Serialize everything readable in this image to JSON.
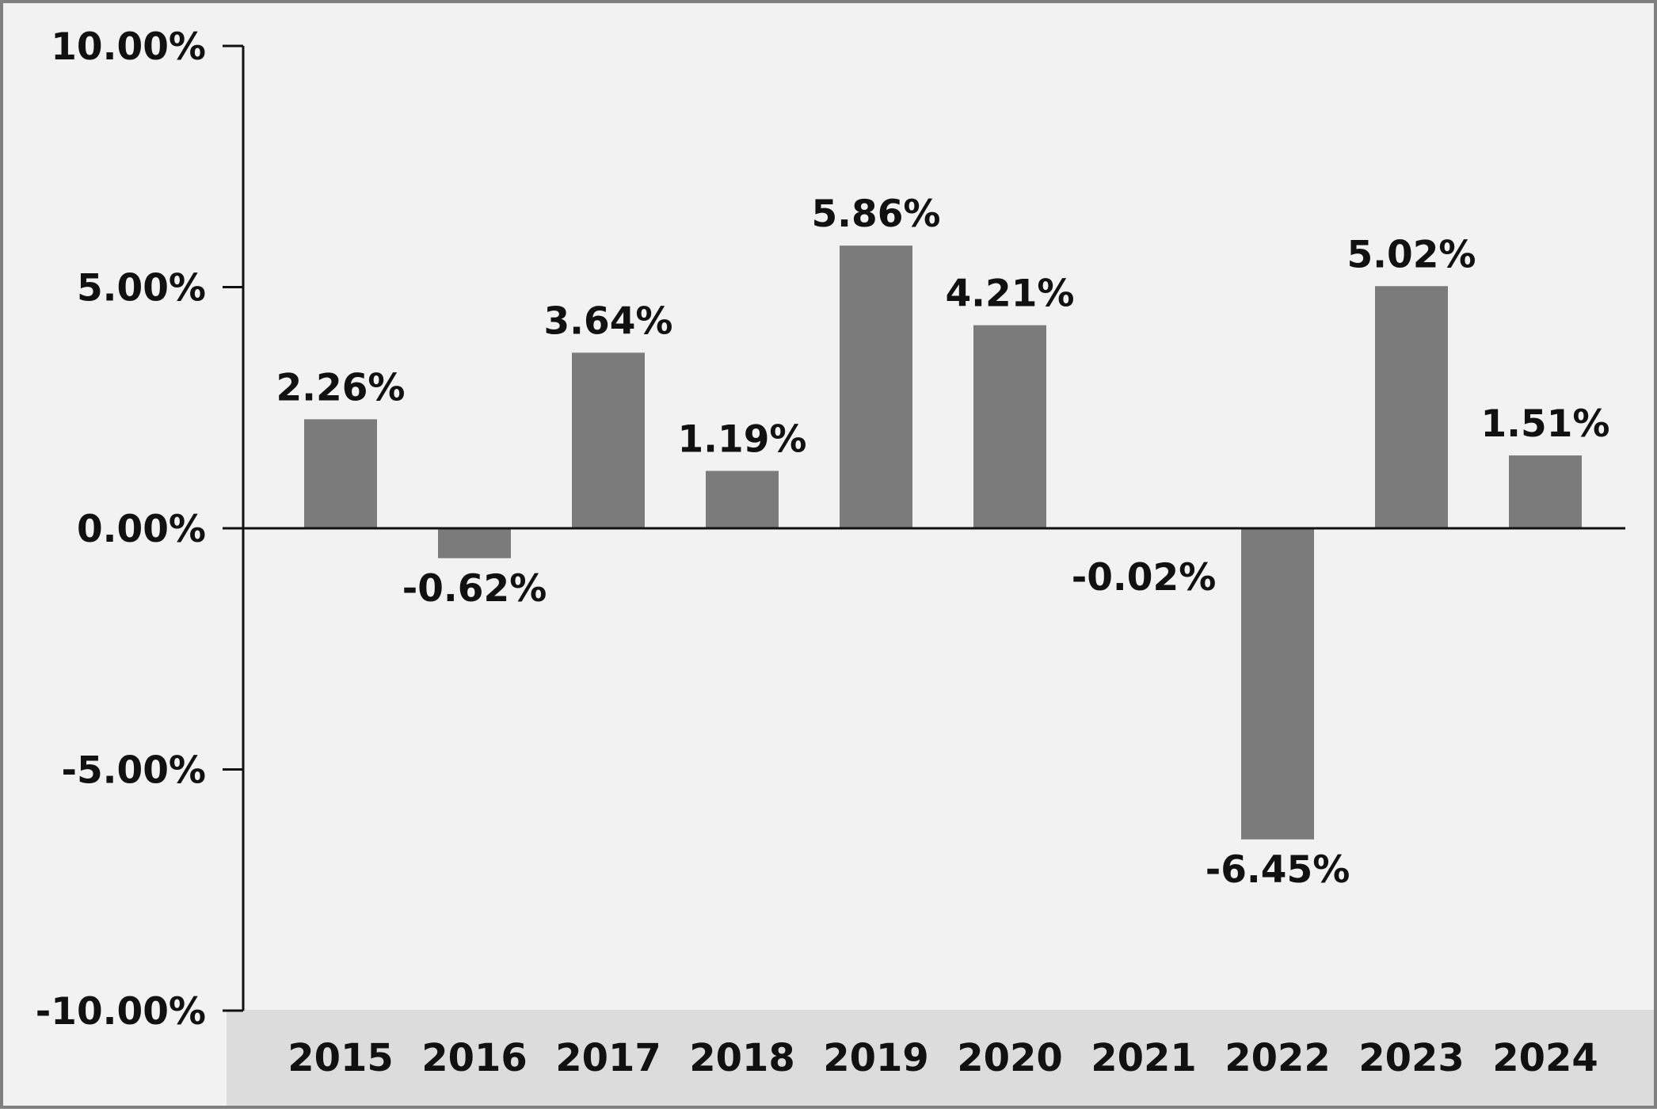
{
  "colors": {
    "background": "#f1f2f1",
    "frame": "#808080",
    "bar": "#7b7b7b",
    "axis": "#111111",
    "x_band": "#dcdcdd"
  },
  "chart_data": {
    "type": "bar",
    "title": "",
    "xlabel": "",
    "ylabel": "",
    "categories": [
      "2015",
      "2016",
      "2017",
      "2018",
      "2019",
      "2020",
      "2021",
      "2022",
      "2023",
      "2024"
    ],
    "values": [
      2.26,
      -0.62,
      3.64,
      1.19,
      5.86,
      4.21,
      -0.02,
      -6.45,
      5.02,
      1.51
    ],
    "data_labels": [
      "2.26%",
      "-0.62%",
      "3.64%",
      "1.19%",
      "5.86%",
      "4.21%",
      "-0.02%",
      "-6.45%",
      "5.02%",
      "1.51%"
    ],
    "ylim": [
      -10,
      10
    ],
    "yticks": [
      10,
      5,
      0,
      -5,
      -10
    ],
    "ytick_labels": [
      "10.00%",
      "5.00%",
      "0.00%",
      "-5.00%",
      "-10.00%"
    ],
    "grid": false,
    "legend": "none"
  }
}
